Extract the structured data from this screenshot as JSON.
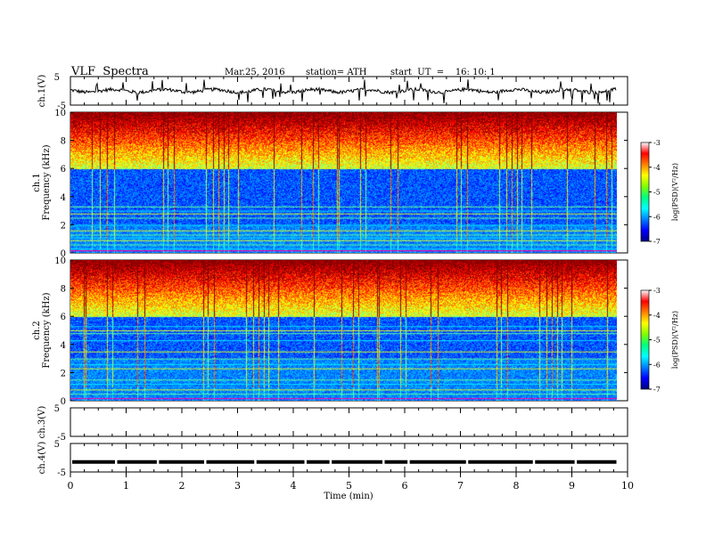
{
  "header": {
    "title": "VLF  Spectra",
    "date": "Mar.25, 2016",
    "station": "station= ATH",
    "start": "start  UT  =    16: 10: 1"
  },
  "chart_data": {
    "type": "heatmap",
    "xlabel": "Time  (min)",
    "xlim": [
      0,
      10
    ],
    "xticks": [
      "0",
      "1",
      "2",
      "3",
      "4",
      "5",
      "6",
      "7",
      "8",
      "9",
      "10"
    ],
    "panels": [
      {
        "id": "ch1-wave",
        "type": "line",
        "ylabel": "ch.1(V)",
        "ylim": [
          -5,
          5
        ],
        "yticks": [
          "5",
          "-5"
        ],
        "baseline": 0
      },
      {
        "id": "ch1-spec",
        "type": "heatmap",
        "ylabel_top": "ch.1",
        "ylabel": "Frequency  (kHz)",
        "ylim": [
          0,
          10
        ],
        "yticks": [
          "10",
          "8",
          "6",
          "4",
          "2",
          "0"
        ],
        "lines_khz": [
          0.3,
          0.6,
          0.9,
          1.1,
          1.3,
          1.6,
          2.0,
          2.5,
          2.8,
          3.0,
          3.3
        ],
        "blue_band_khz": [
          2,
          6
        ]
      },
      {
        "id": "ch2-spec",
        "type": "heatmap",
        "ylabel_top": "ch.2",
        "ylabel": "Frequency  (kHz)",
        "ylim": [
          0,
          10
        ],
        "yticks": [
          "10",
          "8",
          "6",
          "4",
          "2",
          "0"
        ],
        "lines_khz": [
          0.2,
          0.5,
          0.8,
          1.2,
          1.5,
          2.3,
          2.6,
          3.0,
          3.5,
          4.3,
          4.8,
          5.0,
          5.3
        ],
        "blue_band_khz": [
          3,
          6
        ]
      },
      {
        "id": "ch3-wave",
        "type": "line",
        "ylabel": "ch.3(V)",
        "ylim": [
          -5,
          5
        ],
        "yticks": [
          "5",
          "-5"
        ]
      },
      {
        "id": "ch4-wave",
        "type": "line",
        "ylabel": "ch.4(V)",
        "ylim": [
          -5,
          5
        ],
        "yticks": [
          "5",
          "-5"
        ],
        "baseline": -1.5
      }
    ],
    "colorbar": {
      "label": "log(PSD)(V²/Hz)",
      "range": [
        -7,
        -3
      ],
      "ticks": [
        "-3",
        "-4",
        "-5",
        "-6",
        "-7"
      ],
      "colors": [
        "#000080",
        "#0000ff",
        "#0080ff",
        "#00ffff",
        "#00ff80",
        "#80ff00",
        "#ffff00",
        "#ff8000",
        "#ff0000",
        "#ffffff"
      ]
    },
    "data_end_min": 9.8
  }
}
